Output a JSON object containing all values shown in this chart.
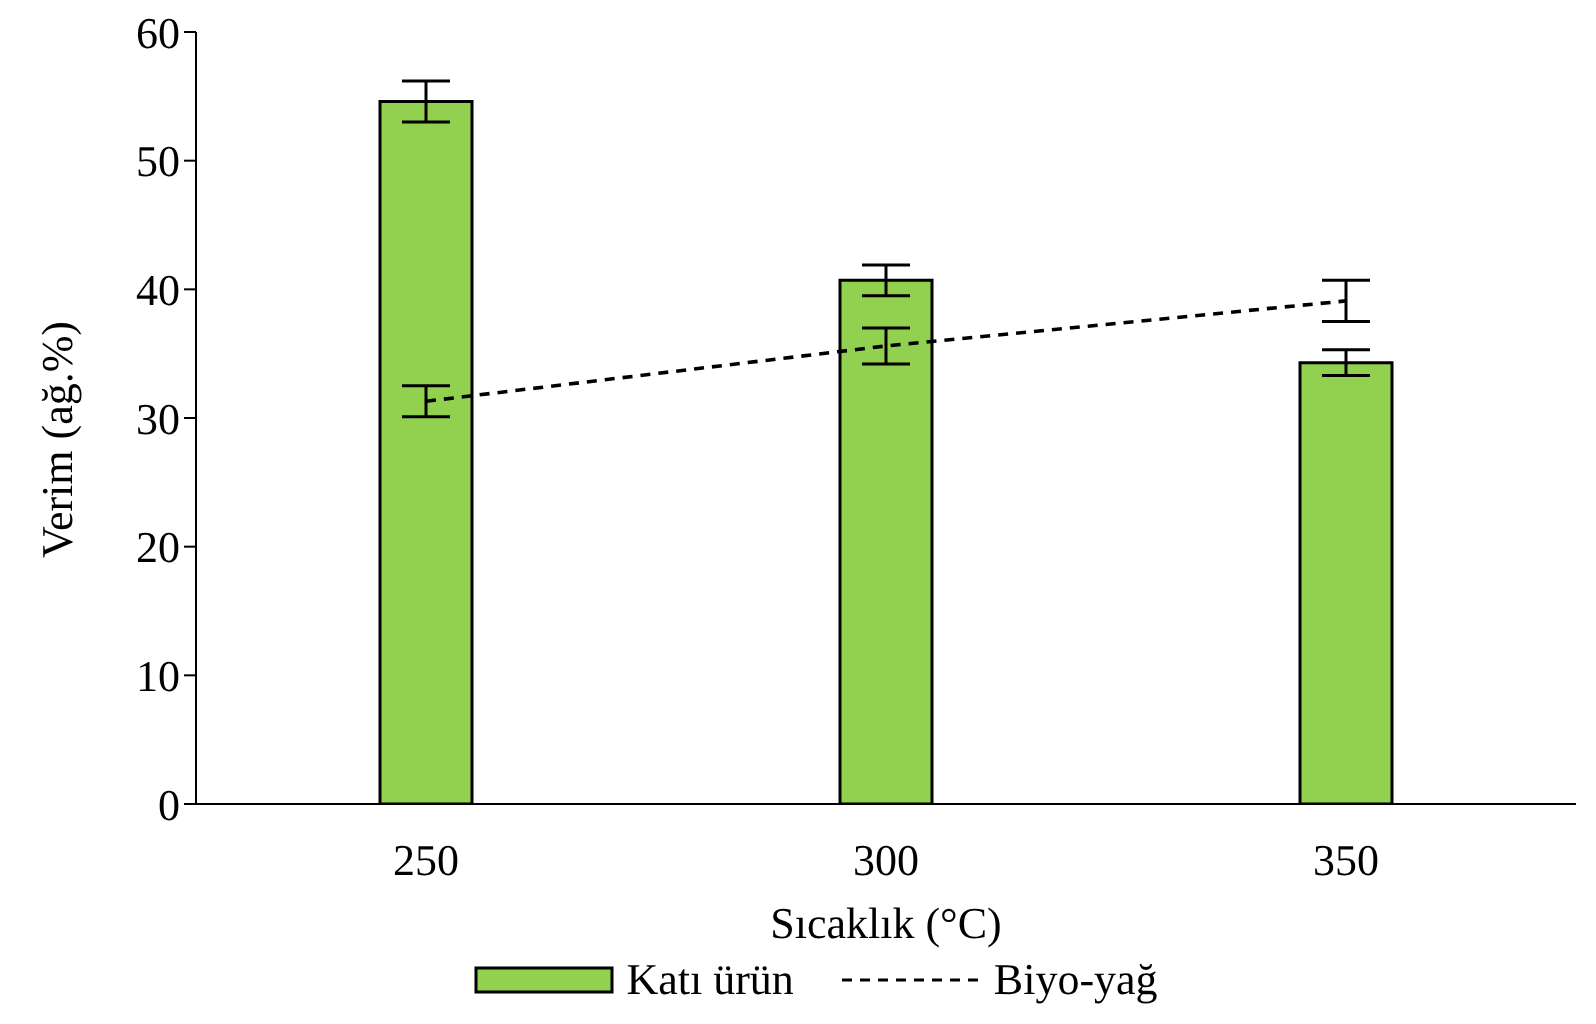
{
  "chart_data": {
    "type": "bar",
    "xlabel": "Sıcaklık (°C)",
    "ylabel": "Verim (ağ.%)",
    "categories": [
      "250",
      "300",
      "350"
    ],
    "series": [
      {
        "name": "Katı ürün",
        "color": "#92d050",
        "values": [
          54.6,
          40.7,
          34.3
        ],
        "errors": [
          1.6,
          1.2,
          1.0
        ]
      },
      {
        "name": "Biyo-yağ",
        "type": "line",
        "color": "#000000",
        "values": [
          31.3,
          35.6,
          39.1
        ],
        "errors": [
          1.2,
          1.4,
          1.6
        ],
        "line_style": "dashed",
        "marker": "none"
      }
    ],
    "ylim": [
      0,
      60
    ],
    "yticks": [
      0,
      10,
      20,
      30,
      40,
      50,
      60
    ],
    "grid": false,
    "legend": "bottom"
  }
}
